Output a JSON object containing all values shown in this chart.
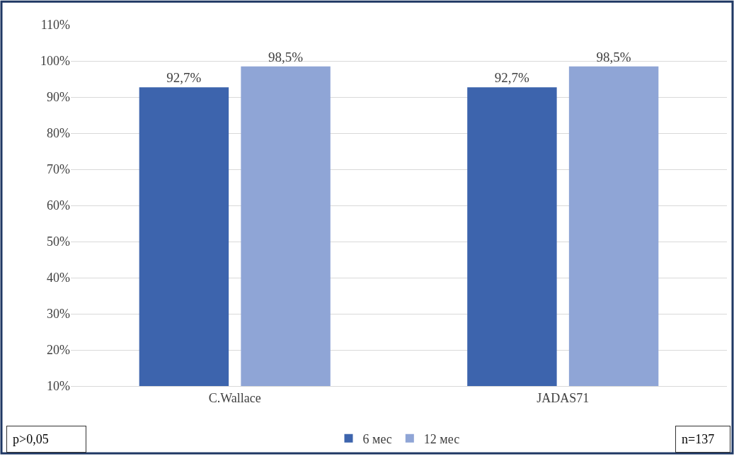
{
  "chart_data": {
    "type": "bar",
    "categories": [
      "C.Wallace",
      "JADAS71"
    ],
    "series": [
      {
        "name": "6 мес",
        "color": "#3d64ad",
        "values": [
          92.7,
          92.7
        ],
        "value_labels": [
          "92,7%",
          "92,7%"
        ]
      },
      {
        "name": "12 мес",
        "color": "#8fa5d6",
        "values": [
          98.5,
          98.5
        ],
        "value_labels": [
          "98,5%",
          "98,5%"
        ]
      }
    ],
    "ylim": [
      10,
      110
    ],
    "yticks": [
      {
        "value": 10,
        "label": "10%"
      },
      {
        "value": 20,
        "label": "20%"
      },
      {
        "value": 30,
        "label": "30%"
      },
      {
        "value": 40,
        "label": "40%"
      },
      {
        "value": 50,
        "label": "50%"
      },
      {
        "value": 60,
        "label": "60%"
      },
      {
        "value": 70,
        "label": "70%"
      },
      {
        "value": 80,
        "label": "80%"
      },
      {
        "value": 90,
        "label": "90%"
      },
      {
        "value": 100,
        "label": "100%"
      },
      {
        "value": 110,
        "label": "110%"
      }
    ],
    "grid": "y",
    "legend": "bottom",
    "annotations": [
      "p>0,05",
      "n=137"
    ]
  }
}
